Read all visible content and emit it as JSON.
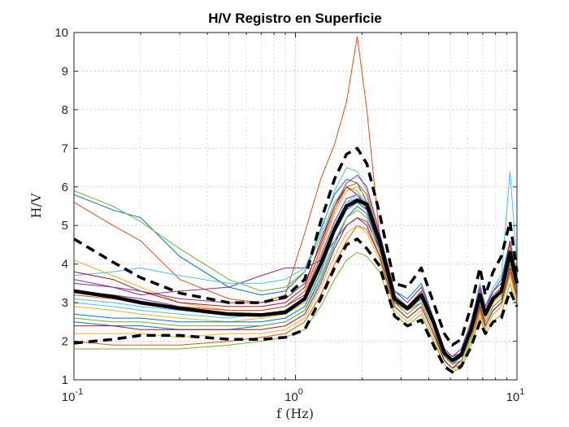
{
  "chart_data": {
    "type": "line",
    "title": "H/V Registro en Superficie",
    "xlabel": "f (Hz)",
    "ylabel": "H/V",
    "xscale": "log",
    "xlim": [
      0.1,
      10
    ],
    "ylim": [
      1,
      10
    ],
    "xticks": [
      {
        "value": 0.1,
        "base": "10",
        "exp": "-1"
      },
      {
        "value": 1,
        "base": "10",
        "exp": "0"
      },
      {
        "value": 10,
        "base": "10",
        "exp": "1"
      }
    ],
    "yticks": [
      "1",
      "2",
      "3",
      "4",
      "5",
      "6",
      "7",
      "8",
      "9",
      "10"
    ],
    "grid": true,
    "legend": "none",
    "mean_curve": {
      "style": "solid-thick",
      "color": "#000000",
      "x": [
        0.1,
        0.15,
        0.2,
        0.3,
        0.5,
        0.7,
        0.9,
        1.1,
        1.3,
        1.5,
        1.7,
        1.9,
        2.1,
        2.4,
        2.8,
        3.2,
        3.7,
        4.2,
        4.7,
        5.1,
        5.6,
        6.2,
        6.8,
        7.2,
        7.8,
        8.5,
        9.3,
        10
      ],
      "y": [
        3.3,
        3.15,
        3.0,
        2.85,
        2.7,
        2.68,
        2.75,
        3.1,
        4.0,
        4.9,
        5.5,
        5.65,
        5.55,
        4.6,
        3.1,
        2.85,
        3.2,
        2.5,
        1.7,
        1.5,
        1.65,
        2.3,
        3.2,
        2.7,
        3.1,
        3.3,
        4.3,
        3.5
      ]
    },
    "upper_curve": {
      "style": "dashed-thick",
      "color": "#000000",
      "x": [
        0.1,
        0.15,
        0.2,
        0.3,
        0.5,
        0.7,
        0.9,
        1.1,
        1.3,
        1.5,
        1.7,
        1.9,
        2.1,
        2.4,
        2.8,
        3.2,
        3.7,
        4.2,
        4.7,
        5.1,
        5.6,
        6.2,
        6.8,
        7.2,
        7.8,
        8.5,
        9.3,
        10
      ],
      "y": [
        4.65,
        4.05,
        3.65,
        3.25,
        3.0,
        3.0,
        3.15,
        3.6,
        5.1,
        6.2,
        6.85,
        7.0,
        6.6,
        5.3,
        3.5,
        3.4,
        3.9,
        3.0,
        2.2,
        1.9,
        2.05,
        2.9,
        3.9,
        3.2,
        3.8,
        4.2,
        5.1,
        3.8
      ]
    },
    "lower_curve": {
      "style": "dashed-thick",
      "color": "#000000",
      "x": [
        0.1,
        0.15,
        0.2,
        0.3,
        0.5,
        0.7,
        0.9,
        1.1,
        1.3,
        1.5,
        1.7,
        1.9,
        2.1,
        2.4,
        2.8,
        3.2,
        3.7,
        4.2,
        4.7,
        5.1,
        5.6,
        6.2,
        6.8,
        7.2,
        7.8,
        8.5,
        9.3,
        10
      ],
      "y": [
        1.95,
        2.05,
        2.15,
        2.15,
        2.05,
        2.05,
        2.1,
        2.3,
        3.1,
        3.9,
        4.5,
        4.65,
        4.4,
        3.95,
        2.65,
        2.4,
        2.55,
        1.9,
        1.35,
        1.2,
        1.35,
        1.85,
        2.5,
        2.2,
        2.5,
        2.6,
        3.3,
        2.9
      ]
    },
    "individual_records": {
      "count": 20,
      "colors": [
        "#0072BD",
        "#D95319",
        "#EDB120",
        "#7E2F8E",
        "#77AC30",
        "#4DBEEE",
        "#A2142F"
      ],
      "x": [
        0.1,
        0.15,
        0.2,
        0.3,
        0.5,
        0.7,
        0.9,
        1.1,
        1.3,
        1.5,
        1.7,
        1.9,
        2.1,
        2.4,
        2.8,
        3.2,
        3.7,
        4.2,
        4.7,
        5.1,
        5.6,
        6.2,
        6.8,
        7.2,
        7.8,
        8.5,
        9.3,
        10
      ],
      "series": [
        {
          "y": [
            5.8,
            5.4,
            5.2,
            4.2,
            3.4,
            3.2,
            3.3,
            3.8,
            4.9,
            5.8,
            6.2,
            6.1,
            5.6,
            4.6,
            3.3,
            3.1,
            3.5,
            2.6,
            1.8,
            1.6,
            1.7,
            2.4,
            3.4,
            2.8,
            3.3,
            3.6,
            4.6,
            3.7
          ]
        },
        {
          "y": [
            5.6,
            5.0,
            4.6,
            3.6,
            3.1,
            3.0,
            3.2,
            4.8,
            6.2,
            7.1,
            8.2,
            9.9,
            8.0,
            4.7,
            3.0,
            2.8,
            3.0,
            2.3,
            1.6,
            1.4,
            1.5,
            2.1,
            3.0,
            2.5,
            2.9,
            3.1,
            4.0,
            3.3
          ]
        },
        {
          "y": [
            4.1,
            3.7,
            3.4,
            3.0,
            2.8,
            2.8,
            2.9,
            3.3,
            4.3,
            5.3,
            5.9,
            6.0,
            5.7,
            4.7,
            3.2,
            2.9,
            3.2,
            2.5,
            1.7,
            1.5,
            1.7,
            2.3,
            3.2,
            2.7,
            3.1,
            3.3,
            4.4,
            3.5
          ]
        },
        {
          "y": [
            3.6,
            3.4,
            3.2,
            3.3,
            3.4,
            3.7,
            3.9,
            3.9,
            4.1,
            4.6,
            5.0,
            5.2,
            5.1,
            4.4,
            3.0,
            2.9,
            3.3,
            2.6,
            1.8,
            1.6,
            1.7,
            2.3,
            3.1,
            2.6,
            3.0,
            3.2,
            4.1,
            3.4
          ]
        },
        {
          "y": [
            5.9,
            5.5,
            5.1,
            4.4,
            3.6,
            3.3,
            3.4,
            3.8,
            4.7,
            5.6,
            6.0,
            5.9,
            5.5,
            4.5,
            3.2,
            2.8,
            3.2,
            2.4,
            1.6,
            1.4,
            1.6,
            2.2,
            3.1,
            2.6,
            3.0,
            3.2,
            4.2,
            3.4
          ]
        },
        {
          "y": [
            3.7,
            3.8,
            3.9,
            3.7,
            3.5,
            3.5,
            3.6,
            3.9,
            4.8,
            5.9,
            6.5,
            6.4,
            5.9,
            4.8,
            3.3,
            3.0,
            3.4,
            2.6,
            1.8,
            1.6,
            1.8,
            2.5,
            3.5,
            2.9,
            3.4,
            3.7,
            6.4,
            4.0
          ]
        },
        {
          "y": [
            3.8,
            3.6,
            3.3,
            3.0,
            2.9,
            2.9,
            3.0,
            3.4,
            4.6,
            5.5,
            6.0,
            5.8,
            5.4,
            4.4,
            3.1,
            2.8,
            3.1,
            2.4,
            1.6,
            1.4,
            1.6,
            2.2,
            3.0,
            2.5,
            2.9,
            3.1,
            4.0,
            3.3
          ]
        },
        {
          "y": [
            2.5,
            2.4,
            2.4,
            2.3,
            2.3,
            2.4,
            2.5,
            2.8,
            3.6,
            4.5,
            5.2,
            5.5,
            5.3,
            4.4,
            3.0,
            2.7,
            3.0,
            2.3,
            1.5,
            1.3,
            1.5,
            2.1,
            2.9,
            2.4,
            2.8,
            3.0,
            3.9,
            3.2
          ]
        },
        {
          "y": [
            2.0,
            1.9,
            1.9,
            1.9,
            2.0,
            2.1,
            2.2,
            2.5,
            3.2,
            4.0,
            4.6,
            5.0,
            4.9,
            4.2,
            2.9,
            2.6,
            2.9,
            2.2,
            1.5,
            1.3,
            1.4,
            2.0,
            2.8,
            2.3,
            2.7,
            2.9,
            3.8,
            3.1
          ]
        },
        {
          "y": [
            2.9,
            2.8,
            2.7,
            2.6,
            2.5,
            2.6,
            2.7,
            3.0,
            3.9,
            4.9,
            5.5,
            5.7,
            5.5,
            4.5,
            3.1,
            2.8,
            3.1,
            2.4,
            1.6,
            1.4,
            1.6,
            2.2,
            3.1,
            2.6,
            3.0,
            3.2,
            4.2,
            3.4
          ]
        },
        {
          "y": [
            3.3,
            3.2,
            3.1,
            2.9,
            2.8,
            2.8,
            2.9,
            3.2,
            4.2,
            5.1,
            5.7,
            5.8,
            5.5,
            4.5,
            3.1,
            2.9,
            3.2,
            2.5,
            1.7,
            1.5,
            1.7,
            2.3,
            3.2,
            2.7,
            3.1,
            3.3,
            4.3,
            3.5
          ]
        },
        {
          "y": [
            1.8,
            1.8,
            1.8,
            1.8,
            1.9,
            2.0,
            2.1,
            2.3,
            2.9,
            3.6,
            4.1,
            4.3,
            4.2,
            3.8,
            2.7,
            2.4,
            2.7,
            2.0,
            1.4,
            1.2,
            1.3,
            1.9,
            2.6,
            2.2,
            2.5,
            2.7,
            3.5,
            2.9
          ]
        },
        {
          "y": [
            3.1,
            3.0,
            2.9,
            2.8,
            2.7,
            2.7,
            2.8,
            3.1,
            4.0,
            5.0,
            5.6,
            5.7,
            5.5,
            4.6,
            3.2,
            2.9,
            3.2,
            2.5,
            1.7,
            1.5,
            1.7,
            2.3,
            3.2,
            2.7,
            3.1,
            3.3,
            4.3,
            3.5
          ]
        },
        {
          "y": [
            2.4,
            2.4,
            2.3,
            2.3,
            2.3,
            2.3,
            2.4,
            2.7,
            3.5,
            4.4,
            5.0,
            5.2,
            5.0,
            4.2,
            2.9,
            2.6,
            2.9,
            2.2,
            1.5,
            1.3,
            1.5,
            2.1,
            2.9,
            2.4,
            2.8,
            3.0,
            3.9,
            3.2
          ]
        },
        {
          "y": [
            2.7,
            2.6,
            2.6,
            2.5,
            2.5,
            2.5,
            2.6,
            2.9,
            3.8,
            4.8,
            5.4,
            5.6,
            5.4,
            4.5,
            3.1,
            2.8,
            3.1,
            2.4,
            1.6,
            1.4,
            1.6,
            2.2,
            3.0,
            2.5,
            2.9,
            3.1,
            4.1,
            3.4
          ]
        },
        {
          "y": [
            3.2,
            3.1,
            3.0,
            2.9,
            2.8,
            2.8,
            2.9,
            3.3,
            4.4,
            5.4,
            6.0,
            6.1,
            5.8,
            4.7,
            3.2,
            2.9,
            3.3,
            2.5,
            1.7,
            1.5,
            1.7,
            2.4,
            3.3,
            2.8,
            3.2,
            3.4,
            4.5,
            3.6
          ]
        },
        {
          "y": [
            2.2,
            2.2,
            2.2,
            2.1,
            2.2,
            2.2,
            2.3,
            2.6,
            3.4,
            4.2,
            4.8,
            5.0,
            4.8,
            4.1,
            2.8,
            2.5,
            2.8,
            2.1,
            1.4,
            1.2,
            1.4,
            2.0,
            2.7,
            2.3,
            2.7,
            2.9,
            3.7,
            3.0
          ]
        },
        {
          "y": [
            3.5,
            3.4,
            3.3,
            3.1,
            3.0,
            3.0,
            3.1,
            3.5,
            4.5,
            5.5,
            6.1,
            6.3,
            6.0,
            4.8,
            3.3,
            3.0,
            3.4,
            2.6,
            1.8,
            1.6,
            1.8,
            2.5,
            3.4,
            2.9,
            3.3,
            3.5,
            4.6,
            3.7
          ]
        },
        {
          "y": [
            2.6,
            2.5,
            2.5,
            2.4,
            2.4,
            2.4,
            2.5,
            2.8,
            3.7,
            4.6,
            5.2,
            5.4,
            5.2,
            4.3,
            3.0,
            2.7,
            3.0,
            2.3,
            1.6,
            1.4,
            1.5,
            2.1,
            3.0,
            2.5,
            2.9,
            3.1,
            4.0,
            3.3
          ]
        },
        {
          "y": [
            3.0,
            2.9,
            2.8,
            2.7,
            2.6,
            2.7,
            2.8,
            3.1,
            4.1,
            5.0,
            5.6,
            5.8,
            5.6,
            4.6,
            3.2,
            2.9,
            3.2,
            2.5,
            1.7,
            1.5,
            1.7,
            2.3,
            3.2,
            2.7,
            3.1,
            3.3,
            4.3,
            3.5
          ]
        }
      ]
    }
  }
}
